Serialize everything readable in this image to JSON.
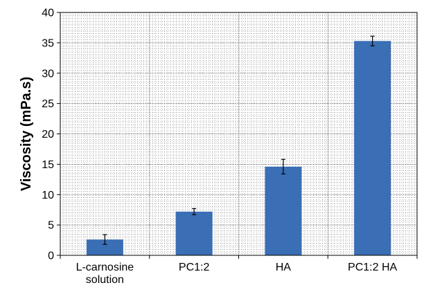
{
  "chart_data": {
    "type": "bar",
    "title": "",
    "xlabel": "",
    "ylabel": "Viscosity (mPa.s)",
    "categories": [
      [
        "L-carnosine",
        "solution"
      ],
      [
        "PC1:2"
      ],
      [
        "HA"
      ],
      [
        "PC1:2 HA"
      ]
    ],
    "series": [
      {
        "values": [
          2.6,
          7.2,
          14.6,
          35.3
        ],
        "errors": [
          0.8,
          0.5,
          1.2,
          0.8
        ]
      }
    ],
    "ylim": [
      0,
      40
    ],
    "yticks": [
      "0",
      "5",
      "10",
      "15",
      "20",
      "25",
      "30",
      "35",
      "40"
    ],
    "grid": "dotted, major and minor",
    "bar_color": "#3A6EB5",
    "error_bar_color": "#000000",
    "legend": "none"
  }
}
